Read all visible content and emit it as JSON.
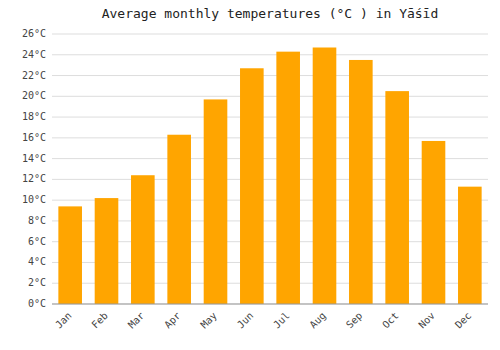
{
  "chart_data": {
    "type": "bar",
    "title": "Average monthly temperatures (°C ) in Yāśīd",
    "categories": [
      "Jan",
      "Feb",
      "Mar",
      "Apr",
      "May",
      "Jun",
      "Jul",
      "Aug",
      "Sep",
      "Oct",
      "Nov",
      "Dec"
    ],
    "values": [
      9.4,
      10.2,
      12.4,
      16.3,
      19.7,
      22.7,
      24.3,
      24.7,
      23.5,
      20.5,
      15.7,
      11.3
    ],
    "color": "#FFA500",
    "ylim": [
      0,
      26
    ],
    "yticks": [
      {
        "value": 0,
        "label": "0°C"
      },
      {
        "value": 2,
        "label": "2°C"
      },
      {
        "value": 4,
        "label": "4°C"
      },
      {
        "value": 6,
        "label": "6°C"
      },
      {
        "value": 8,
        "label": "8°C"
      },
      {
        "value": 10,
        "label": "10°C"
      },
      {
        "value": 12,
        "label": "12°C"
      },
      {
        "value": 14,
        "label": "14°C"
      },
      {
        "value": 16,
        "label": "16°C"
      },
      {
        "value": 18,
        "label": "18°C"
      },
      {
        "value": 20,
        "label": "20°C"
      },
      {
        "value": 22,
        "label": "22°C"
      },
      {
        "value": 24,
        "label": "24°C"
      },
      {
        "value": 26,
        "label": "26°C"
      }
    ],
    "grid": true
  }
}
